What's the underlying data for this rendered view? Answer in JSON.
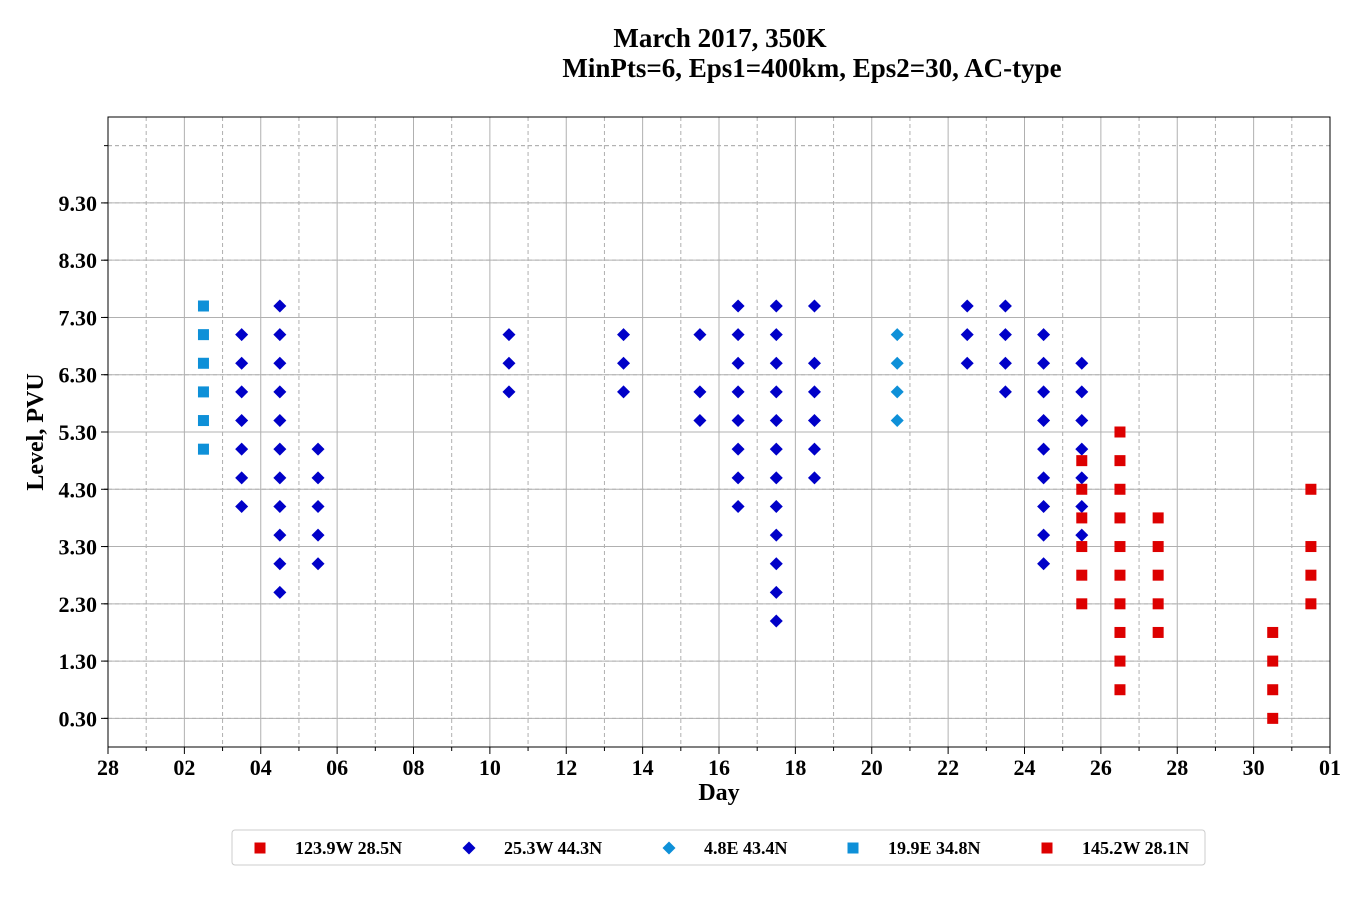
{
  "chart_data": {
    "type": "scatter",
    "title": "March 2017, 350K",
    "subtitle": "MinPts=6, Eps1=400km, Eps2=30, AC-type",
    "xlabel": "Day",
    "ylabel": "Level, PVU",
    "x_unit": "day",
    "x_range": [
      "2017-02-28",
      "2017-04-01"
    ],
    "x_ticks": [
      "28",
      "02",
      "04",
      "06",
      "08",
      "10",
      "12",
      "14",
      "16",
      "18",
      "20",
      "22",
      "24",
      "26",
      "28",
      "30",
      "01"
    ],
    "ylim": [
      -0.2,
      10.8
    ],
    "y_ticks": [
      "0.30",
      "1.30",
      "2.30",
      "3.30",
      "4.30",
      "5.30",
      "6.30",
      "7.30",
      "8.30",
      "9.30"
    ],
    "grid": true,
    "legend_position": "bottom-center",
    "series": [
      {
        "name": "123.9W 28.5N",
        "marker": "square",
        "color": "#dd0000",
        "x": [],
        "y": []
      },
      {
        "name": "25.3W 44.3N",
        "marker": "diamond",
        "color": "#0000c8",
        "x": [
          "2017-03-03T12:00",
          "2017-03-03T12:00",
          "2017-03-03T12:00",
          "2017-03-03T12:00",
          "2017-03-03T12:00",
          "2017-03-03T12:00",
          "2017-03-03T12:00",
          "2017-03-04T12:00",
          "2017-03-04T12:00",
          "2017-03-04T12:00",
          "2017-03-04T12:00",
          "2017-03-04T12:00",
          "2017-03-04T12:00",
          "2017-03-04T12:00",
          "2017-03-04T12:00",
          "2017-03-04T12:00",
          "2017-03-04T12:00",
          "2017-03-04T12:00",
          "2017-03-05T12:00",
          "2017-03-05T12:00",
          "2017-03-05T12:00",
          "2017-03-05T12:00",
          "2017-03-05T12:00",
          "2017-03-10T12:00",
          "2017-03-10T12:00",
          "2017-03-10T12:00",
          "2017-03-13T12:00",
          "2017-03-13T12:00",
          "2017-03-13T12:00",
          "2017-03-15T12:00",
          "2017-03-15T12:00",
          "2017-03-15T12:00",
          "2017-03-16T12:00",
          "2017-03-16T12:00",
          "2017-03-16T12:00",
          "2017-03-16T12:00",
          "2017-03-16T12:00",
          "2017-03-16T12:00",
          "2017-03-16T12:00",
          "2017-03-16T12:00",
          "2017-03-17T12:00",
          "2017-03-17T12:00",
          "2017-03-17T12:00",
          "2017-03-17T12:00",
          "2017-03-17T12:00",
          "2017-03-17T12:00",
          "2017-03-17T12:00",
          "2017-03-17T12:00",
          "2017-03-17T12:00",
          "2017-03-17T12:00",
          "2017-03-17T12:00",
          "2017-03-17T12:00",
          "2017-03-18T12:00",
          "2017-03-18T12:00",
          "2017-03-18T12:00",
          "2017-03-18T12:00",
          "2017-03-18T12:00",
          "2017-03-18T12:00",
          "2017-03-22T12:00",
          "2017-03-22T12:00",
          "2017-03-22T12:00",
          "2017-03-23T12:00",
          "2017-03-23T12:00",
          "2017-03-23T12:00",
          "2017-03-23T12:00",
          "2017-03-24T12:00",
          "2017-03-24T12:00",
          "2017-03-24T12:00",
          "2017-03-24T12:00",
          "2017-03-24T12:00",
          "2017-03-24T12:00",
          "2017-03-24T12:00",
          "2017-03-24T12:00",
          "2017-03-24T12:00",
          "2017-03-25T12:00",
          "2017-03-25T12:00",
          "2017-03-25T12:00",
          "2017-03-25T12:00",
          "2017-03-25T12:00",
          "2017-03-25T12:00",
          "2017-03-25T12:00"
        ],
        "y": [
          7.0,
          6.5,
          6.0,
          5.5,
          5.0,
          4.5,
          4.0,
          7.5,
          7.0,
          6.5,
          6.0,
          5.5,
          5.0,
          4.5,
          4.0,
          3.5,
          3.0,
          2.5,
          5.0,
          4.5,
          4.0,
          3.5,
          3.0,
          7.0,
          6.5,
          6.0,
          7.0,
          6.5,
          6.0,
          7.0,
          6.0,
          5.5,
          7.5,
          7.0,
          6.5,
          6.0,
          5.5,
          5.0,
          4.5,
          4.0,
          7.5,
          7.0,
          6.5,
          6.0,
          5.5,
          5.0,
          4.5,
          4.0,
          3.5,
          3.0,
          2.5,
          2.0,
          7.5,
          6.5,
          6.0,
          5.5,
          5.0,
          4.5,
          7.5,
          7.0,
          6.5,
          7.5,
          7.0,
          6.5,
          6.0,
          7.0,
          6.5,
          6.0,
          5.5,
          5.0,
          4.5,
          4.0,
          3.5,
          3.0,
          6.5,
          6.0,
          5.5,
          5.0,
          4.5,
          4.0,
          3.5
        ]
      },
      {
        "name": "4.8E 43.4N",
        "marker": "diamond",
        "color": "#0e90d8",
        "x": [
          "2017-03-20T16:00",
          "2017-03-20T16:00",
          "2017-03-20T16:00",
          "2017-03-20T16:00"
        ],
        "y": [
          7.0,
          6.5,
          6.0,
          5.5
        ]
      },
      {
        "name": "19.9E 34.8N",
        "marker": "square",
        "color": "#0e90d8",
        "x": [
          "2017-03-02T12:00",
          "2017-03-02T12:00",
          "2017-03-02T12:00",
          "2017-03-02T12:00",
          "2017-03-02T12:00",
          "2017-03-02T12:00"
        ],
        "y": [
          7.5,
          7.0,
          6.5,
          6.0,
          5.5,
          5.0
        ]
      },
      {
        "name": "145.2W 28.1N",
        "marker": "square",
        "color": "#dd0000",
        "x": [
          "2017-03-25T12:00",
          "2017-03-25T12:00",
          "2017-03-25T12:00",
          "2017-03-25T12:00",
          "2017-03-25T12:00",
          "2017-03-25T12:00",
          "2017-03-26T12:00",
          "2017-03-26T12:00",
          "2017-03-26T12:00",
          "2017-03-26T12:00",
          "2017-03-26T12:00",
          "2017-03-26T12:00",
          "2017-03-26T12:00",
          "2017-03-26T12:00",
          "2017-03-26T12:00",
          "2017-03-26T12:00",
          "2017-03-27T12:00",
          "2017-03-27T12:00",
          "2017-03-27T12:00",
          "2017-03-27T12:00",
          "2017-03-27T12:00",
          "2017-03-30T12:00",
          "2017-03-30T12:00",
          "2017-03-30T12:00",
          "2017-03-30T12:00",
          "2017-03-31T12:00",
          "2017-03-31T12:00",
          "2017-03-31T12:00",
          "2017-03-31T12:00"
        ],
        "y": [
          4.8,
          4.3,
          3.8,
          3.3,
          2.8,
          2.3,
          5.3,
          4.8,
          4.3,
          3.8,
          3.3,
          2.8,
          2.3,
          1.8,
          1.3,
          0.8,
          3.8,
          3.3,
          2.8,
          2.3,
          1.8,
          1.8,
          1.3,
          0.8,
          0.3,
          4.3,
          3.3,
          2.8,
          2.3
        ]
      }
    ]
  }
}
